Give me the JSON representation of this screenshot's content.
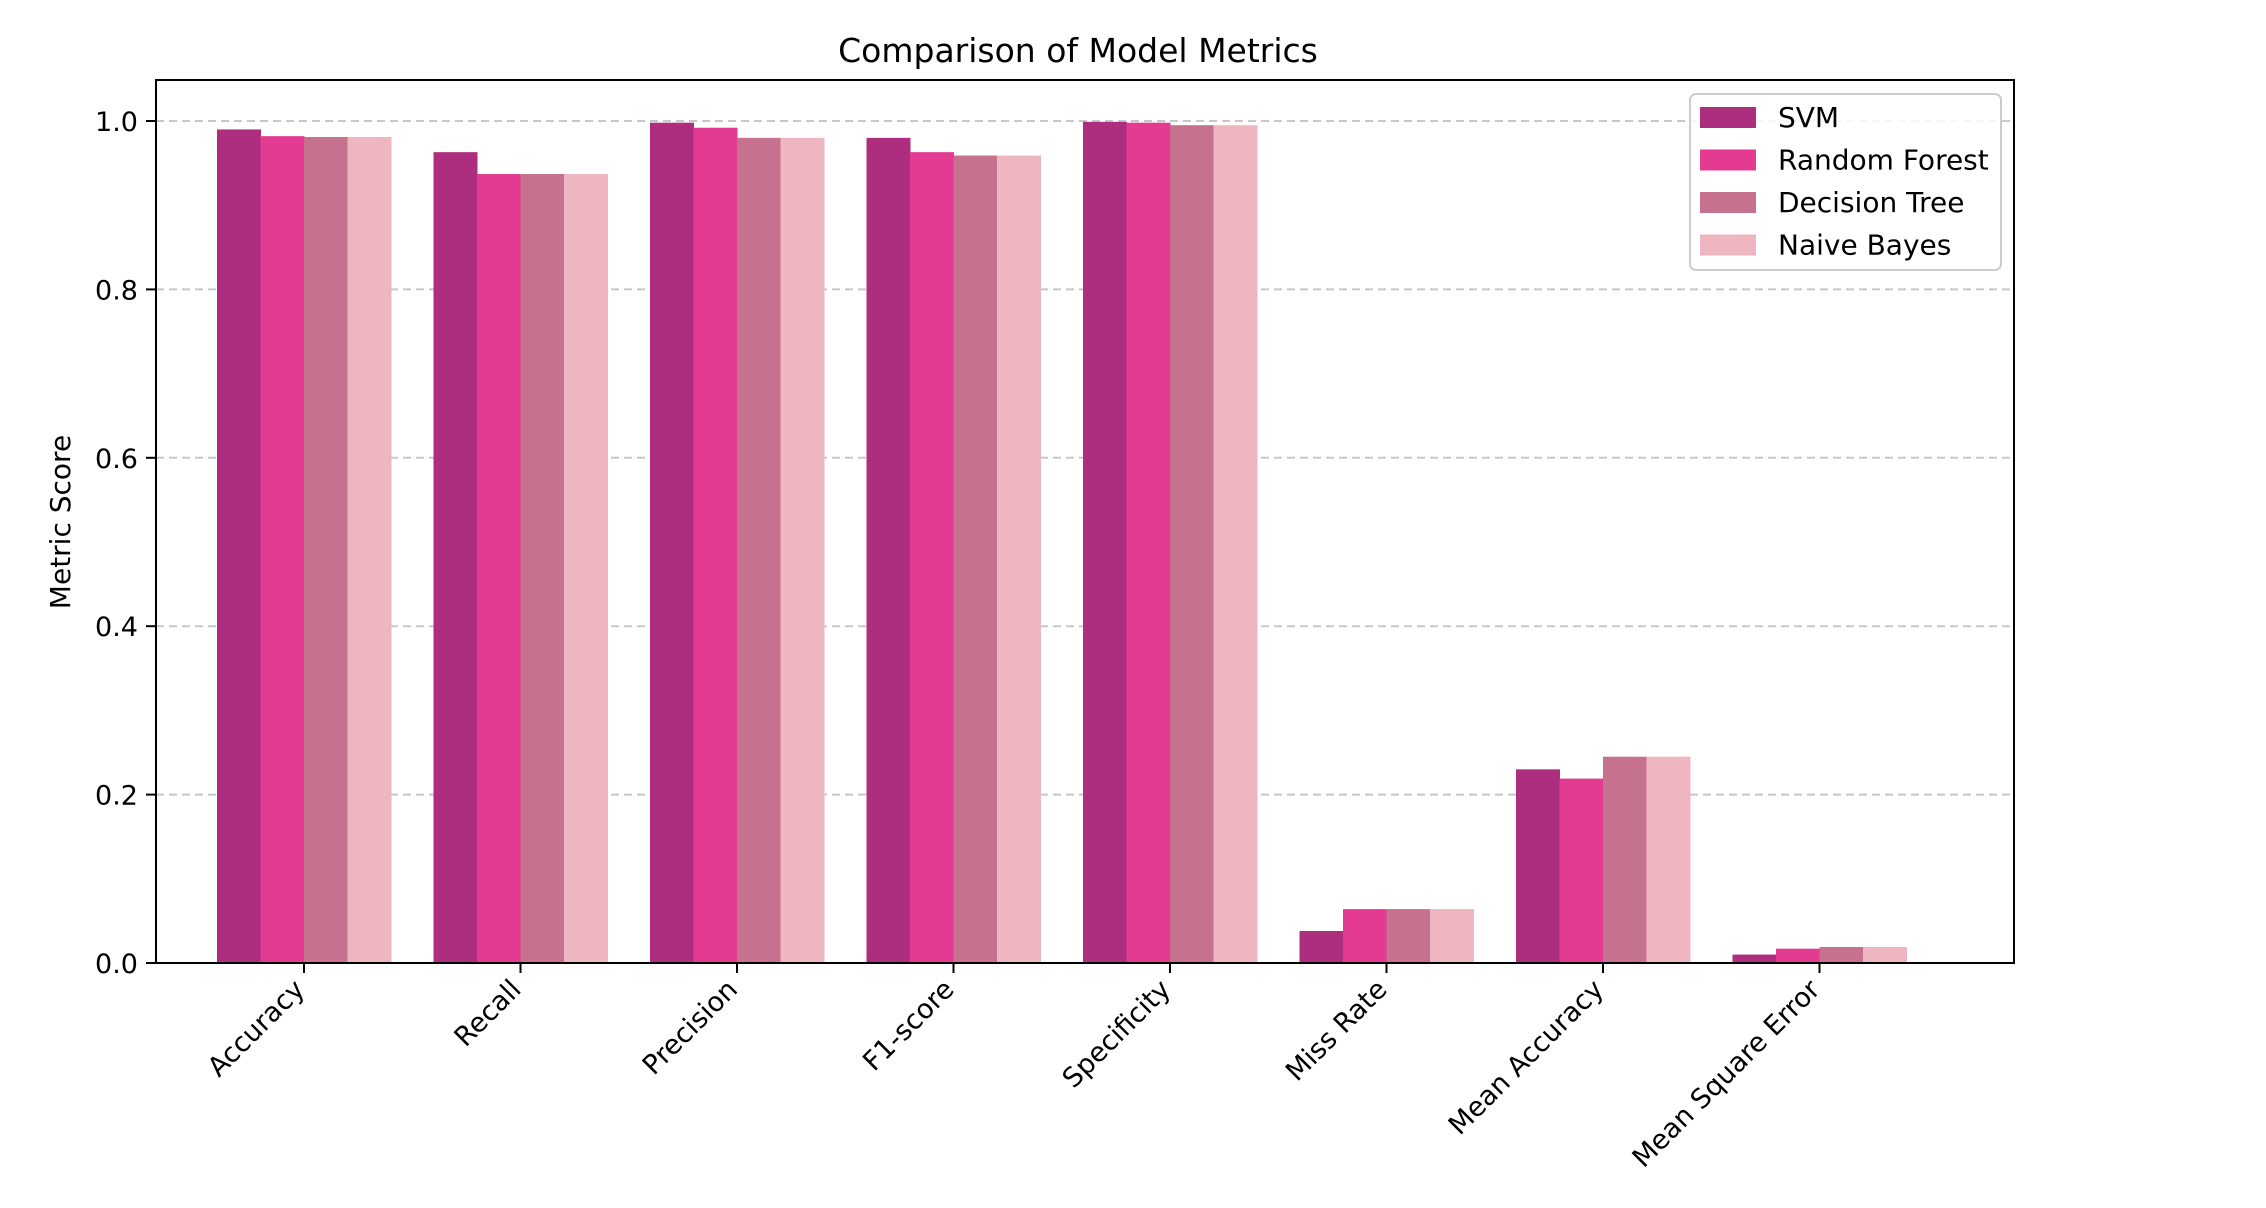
{
  "chart_data": {
    "type": "bar",
    "title": "Comparison of Model Metrics",
    "xlabel": "",
    "ylabel": "Metric Score",
    "ylim": [
      0,
      1.05
    ],
    "yticks": [
      "0.0",
      "0.2",
      "0.4",
      "0.6",
      "0.8",
      "1.0"
    ],
    "ytick_values": [
      0,
      0.2,
      0.4,
      0.6,
      0.8,
      1.0
    ],
    "grid": "horizontal dashed",
    "legend_position": "top-right",
    "categories": [
      "Accuracy",
      "Recall",
      "Precision",
      "F1-score",
      "Specificity",
      "Miss Rate",
      "Mean Accuracy",
      "Mean Square Error"
    ],
    "series": [
      {
        "name": "SVM",
        "color": "#ad2e7f",
        "values": [
          0.99,
          0.963,
          0.998,
          0.98,
          0.999,
          0.038,
          0.23,
          0.01
        ]
      },
      {
        "name": "Random Forest",
        "color": "#e23b91",
        "values": [
          0.982,
          0.937,
          0.992,
          0.963,
          0.998,
          0.064,
          0.219,
          0.017
        ]
      },
      {
        "name": "Decision Tree",
        "color": "#c6718d",
        "values": [
          0.981,
          0.937,
          0.98,
          0.959,
          0.995,
          0.064,
          0.245,
          0.019
        ]
      },
      {
        "name": "Naive Bayes",
        "color": "#eeb6c0",
        "values": [
          0.981,
          0.937,
          0.98,
          0.959,
          0.995,
          0.064,
          0.245,
          0.019
        ]
      }
    ]
  }
}
